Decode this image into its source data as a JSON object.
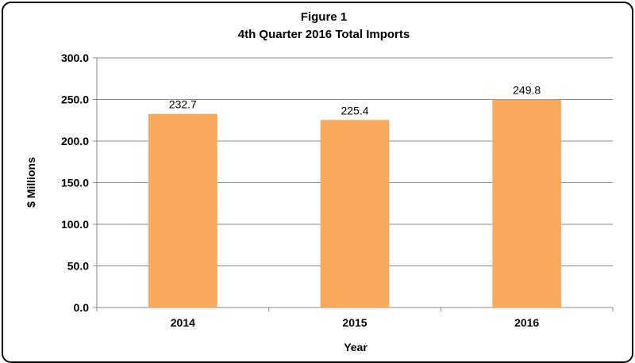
{
  "chart_data": {
    "type": "bar",
    "title": "Figure 1",
    "subtitle": "4th Quarter 2016 Total Imports",
    "xlabel": "Year",
    "ylabel": "$ Millions",
    "categories": [
      "2014",
      "2015",
      "2016"
    ],
    "values": [
      232.7,
      225.4,
      249.8
    ],
    "data_labels": [
      "232.7",
      "225.4",
      "249.8"
    ],
    "ylim": [
      0,
      300
    ],
    "yticks": [
      0,
      50,
      100,
      150,
      200,
      250,
      300
    ],
    "ytick_labels": [
      "0.0",
      "50.0",
      "100.0",
      "150.0",
      "200.0",
      "250.0",
      "300.0"
    ],
    "grid": true,
    "legend": "none",
    "bar_color": "#F9A95B",
    "grid_color": "#888888"
  }
}
